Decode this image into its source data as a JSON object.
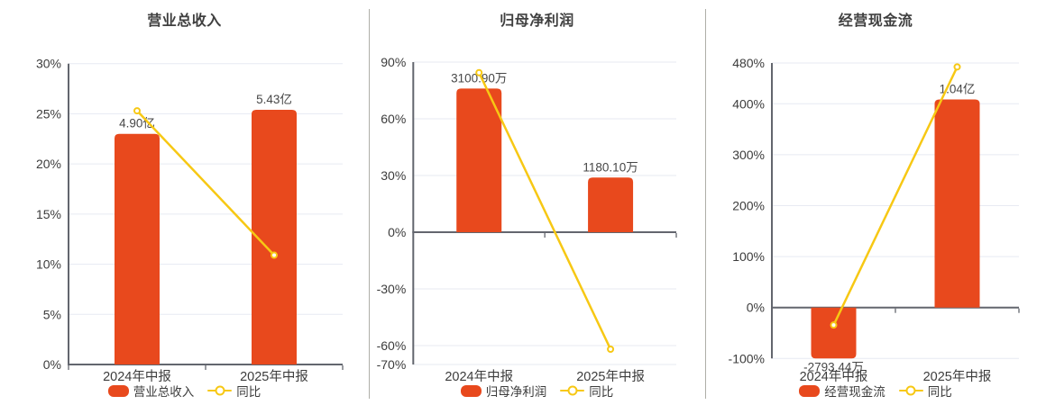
{
  "colors": {
    "bar": "#e8491d",
    "line": "#f7c814",
    "grid": "#e7eaf2",
    "axis": "#63666e",
    "tick_text": "#3c3c3c",
    "value_label_text": "#474747",
    "title_text": "#3f3f3f",
    "divider": "#afafa8",
    "marker_fill": "#ffffff",
    "background": "#ffffff"
  },
  "chart_data": [
    {
      "type": "bar",
      "title": "营业总收入",
      "categories": [
        "2024年中报",
        "2025年中报"
      ],
      "bar_series": {
        "name": "营业总收入",
        "value_labels": [
          "4.90亿",
          "5.43亿"
        ],
        "axis_positions_pct": [
          23.0,
          25.4
        ]
      },
      "line_series": {
        "name": "同比",
        "values_pct": [
          25.3,
          10.9
        ]
      },
      "y_axis": {
        "min": 0,
        "max": 30,
        "tick_values": [
          30,
          25,
          20,
          15,
          10,
          5,
          0
        ],
        "tick_labels": [
          "30%",
          "25%",
          "20%",
          "15%",
          "10%",
          "5%",
          "0%"
        ]
      },
      "legend_position": "bottom"
    },
    {
      "type": "bar",
      "title": "归母净利润",
      "categories": [
        "2024年中报",
        "2025年中报"
      ],
      "bar_series": {
        "name": "归母净利润",
        "value_labels": [
          "3100.90万",
          "1180.10万"
        ],
        "axis_positions_pct": [
          76.0,
          28.9
        ]
      },
      "line_series": {
        "name": "同比",
        "values_pct": [
          84.4,
          -61.9
        ]
      },
      "y_axis": {
        "min": -70,
        "max": 90,
        "tick_values": [
          90,
          60,
          30,
          0,
          -30,
          -60,
          -70
        ],
        "tick_labels": [
          "90%",
          "60%",
          "30%",
          "0%",
          "-30%",
          "-60%",
          "-70%"
        ]
      },
      "legend_position": "bottom"
    },
    {
      "type": "bar",
      "title": "经营现金流",
      "categories": [
        "2024年中报",
        "2025年中报"
      ],
      "bar_series": {
        "name": "经营现金流",
        "value_labels": [
          "-2793.44万",
          "1.04亿"
        ],
        "axis_positions_pct": [
          -100,
          408.5
        ]
      },
      "line_series": {
        "name": "同比",
        "values_pct": [
          -34.4,
          472.3
        ]
      },
      "y_axis": {
        "min": -100,
        "max": 480,
        "tick_values": [
          480,
          400,
          300,
          200,
          100,
          0,
          -100
        ],
        "tick_labels": [
          "480%",
          "400%",
          "300%",
          "200%",
          "100%",
          "0%",
          "-100%"
        ]
      },
      "legend_position": "bottom"
    }
  ]
}
